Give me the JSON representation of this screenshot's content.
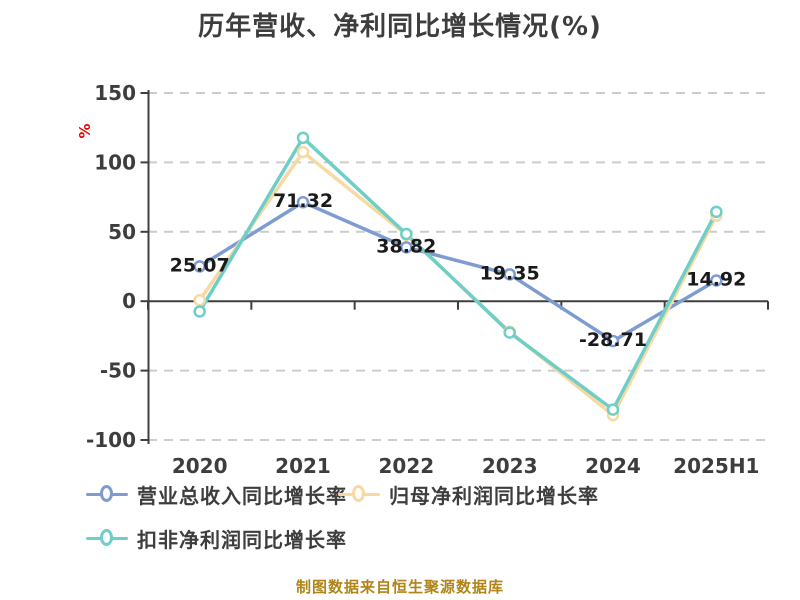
{
  "page": {
    "title": "历年营收、净利同比增长情况(%)",
    "y_axis_unit": "%",
    "footer_note": "制图数据来自恒生聚源数据库"
  },
  "colors": {
    "text": "#3d3d3d",
    "label_text": "#1a1a1a",
    "grid": "#cccccc",
    "axis": "#3f3f3f",
    "unit_red": "#e60000",
    "footer": "#b08418",
    "background": "#ffffff",
    "marker_fill": "#ffffff"
  },
  "chart_data": {
    "type": "line",
    "title": "历年营收、净利同比增长情况(%)",
    "unit": "%",
    "categories": [
      "2020",
      "2021",
      "2022",
      "2023",
      "2024",
      "2025H1"
    ],
    "series": [
      {
        "id": "revenue_yoy",
        "name": "营业总收入同比增长率",
        "color": "#7e9cd2",
        "values": [
          25.07,
          71.32,
          38.82,
          19.35,
          -28.71,
          14.92
        ],
        "point_labels": [
          "25.07",
          "71.32",
          "38.82",
          "19.35",
          "-28.71",
          "14.92"
        ]
      },
      {
        "id": "net_profit_yoy",
        "name": "归母净利润同比增长率",
        "color": "#f7d9a2",
        "values": [
          0.7,
          107.5,
          47.9,
          -22.0,
          -82.1,
          61.6
        ]
      },
      {
        "id": "non_gaap_net_profit_yoy",
        "name": "扣非净利润同比增长率",
        "color": "#6fcec7",
        "values": [
          -7.4,
          117.7,
          48.4,
          -22.6,
          -78.1,
          64.4
        ]
      }
    ],
    "ylim": [
      -100,
      150
    ],
    "yticks": [
      150,
      100,
      50,
      0,
      -50,
      -100
    ],
    "grid": "dashed-horizontal",
    "legend_position": "bottom-left"
  }
}
